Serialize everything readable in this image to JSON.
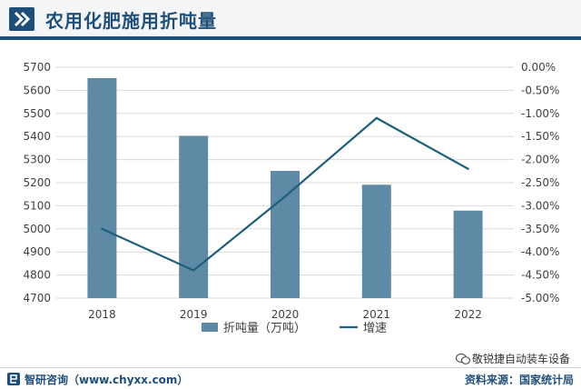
{
  "header": {
    "title": "农用化肥施用折吨量"
  },
  "chart_data": {
    "type": "bar+line",
    "categories": [
      "2018",
      "2019",
      "2020",
      "2021",
      "2022"
    ],
    "series": [
      {
        "name": "折吨量（万吨）",
        "type": "bar",
        "axis": "left",
        "values": [
          5653,
          5403,
          5251,
          5191,
          5079
        ],
        "color": "#5e8aa5"
      },
      {
        "name": "增速",
        "type": "line",
        "axis": "right",
        "values": [
          -3.5,
          -4.4,
          -2.8,
          -1.1,
          -2.2
        ],
        "color": "#1f5f7a"
      }
    ],
    "y_left": {
      "ylim": [
        4700,
        5700
      ],
      "ticks": [
        "4700",
        "4800",
        "4900",
        "5000",
        "5100",
        "5200",
        "5300",
        "5400",
        "5500",
        "5600",
        "5700"
      ]
    },
    "y_right": {
      "ylim": [
        -5.0,
        0.0
      ],
      "ticks": [
        "-5.00%",
        "-4.50%",
        "-4.00%",
        "-3.50%",
        "-3.00%",
        "-2.50%",
        "-2.00%",
        "-1.50%",
        "-1.00%",
        "-0.50%",
        "0.00%"
      ]
    },
    "legend_position": "bottom",
    "grid": true
  },
  "footer": {
    "brand": "智研咨询（www.chyxx.com）",
    "source": "资料来源：国家统计局",
    "wechat": "敬锐捷自动装车设备"
  },
  "colors": {
    "brand": "#1f4f79",
    "bar": "#5e8aa5",
    "line": "#1f5f7a"
  }
}
